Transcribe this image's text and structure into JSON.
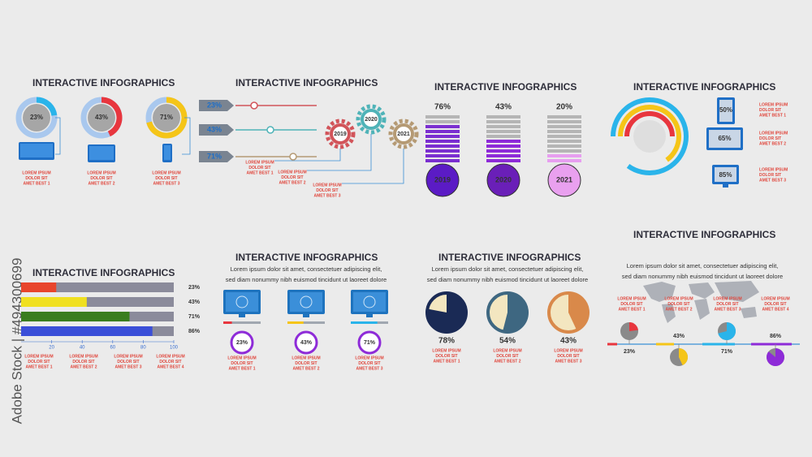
{
  "watermark": "Adobe Stock | #494300699",
  "panels": [
    {
      "title": "INTERACTIVE INFOGRAPHICS",
      "items": [
        {
          "value": 23,
          "label": "23%",
          "caption": [
            "LOREM IPSUM",
            "DOLOR SIT",
            "AMET BEST 1"
          ]
        },
        {
          "value": 43,
          "label": "43%",
          "caption": [
            "LOREM IPSUM",
            "DOLOR SIT",
            "AMET BEST 2"
          ]
        },
        {
          "value": 71,
          "label": "71%",
          "caption": [
            "LOREM IPSUM",
            "DOLOR SIT",
            "AMET BEST 3"
          ]
        }
      ]
    },
    {
      "title": "INTERACTIVE INFOGRAPHICS",
      "items": [
        {
          "value": 23,
          "label": "23%",
          "year": "2019",
          "caption": [
            "LOREM IPSUM",
            "DOLOR SIT",
            "AMET BEST 1"
          ]
        },
        {
          "value": 43,
          "label": "43%",
          "year": "2020",
          "caption": [
            "LOREM IPSUM",
            "DOLOR SIT",
            "AMET BEST 2"
          ]
        },
        {
          "value": 71,
          "label": "71%",
          "year": "2021",
          "caption": [
            "LOREM IPSUM",
            "DOLOR SIT",
            "AMET BEST 3"
          ]
        }
      ]
    },
    {
      "title": "INTERACTIVE INFOGRAPHICS",
      "items": [
        {
          "value": 76,
          "label": "76%",
          "year": "2019"
        },
        {
          "value": 43,
          "label": "43%",
          "year": "2020"
        },
        {
          "value": 20,
          "label": "20%",
          "year": "2021"
        }
      ]
    },
    {
      "title": "INTERACTIVE INFOGRAPHICS",
      "items": [
        {
          "value": 50,
          "label": "50%",
          "caption": [
            "LOREM IPSUM",
            "DOLOR SIT",
            "AMET BEST 1"
          ]
        },
        {
          "value": 65,
          "label": "65%",
          "caption": [
            "LOREM IPSUM",
            "DOLOR SIT",
            "AMET BEST 2"
          ]
        },
        {
          "value": 85,
          "label": "85%",
          "caption": [
            "LOREM IPSUM",
            "DOLOR SIT",
            "AMET BEST 3"
          ]
        }
      ]
    },
    {
      "title": "INTERACTIVE INFOGRAPHICS",
      "xlim": [
        0,
        100
      ],
      "xticks": [
        20,
        40,
        60,
        80,
        100
      ],
      "items": [
        {
          "value": 23,
          "label": "23%",
          "caption": [
            "LOREM IPSUM",
            "DOLOR SIT",
            "AMET BEST 1"
          ]
        },
        {
          "value": 43,
          "label": "43%",
          "caption": [
            "LOREM IPSUM",
            "DOLOR SIT",
            "AMET BEST 2"
          ]
        },
        {
          "value": 71,
          "label": "71%",
          "caption": [
            "LOREM IPSUM",
            "DOLOR SIT",
            "AMET BEST 3"
          ]
        },
        {
          "value": 86,
          "label": "86%",
          "caption": [
            "LOREM IPSUM",
            "DOLOR SIT",
            "AMET BEST 4"
          ]
        }
      ]
    },
    {
      "title": "INTERACTIVE INFOGRAPHICS",
      "subtitle": [
        "Lorem ipsum dolor sit amet, consectetuer adipiscing elit,",
        "sed diam nonummy nibh euismod tincidunt ut laoreet dolore"
      ],
      "items": [
        {
          "value": 23,
          "label": "23%",
          "caption": [
            "LOREM IPSUM",
            "DOLOR SIT",
            "AMET BEST 1"
          ]
        },
        {
          "value": 43,
          "label": "43%",
          "caption": [
            "LOREM IPSUM",
            "DOLOR SIT",
            "AMET BEST 2"
          ]
        },
        {
          "value": 71,
          "label": "71%",
          "caption": [
            "LOREM IPSUM",
            "DOLOR SIT",
            "AMET BEST 3"
          ]
        }
      ]
    },
    {
      "title": "INTERACTIVE INFOGRAPHICS",
      "subtitle": [
        "Lorem ipsum dolor sit amet, consectetuer adipiscing elit,",
        "sed diam nonummy nibh euismod tincidunt ut laoreet dolore"
      ],
      "items": [
        {
          "value": 78,
          "label": "78%",
          "caption": [
            "LOREM IPSUM",
            "DOLOR SIT",
            "AMET BEST 1"
          ]
        },
        {
          "value": 54,
          "label": "54%",
          "caption": [
            "LOREM IPSUM",
            "DOLOR SIT",
            "AMET BEST 2"
          ]
        },
        {
          "value": 43,
          "label": "43%",
          "caption": [
            "LOREM IPSUM",
            "DOLOR SIT",
            "AMET BEST 3"
          ]
        }
      ]
    },
    {
      "title": "INTERACTIVE INFOGRAPHICS",
      "subtitle": [
        "Lorem ipsum dolor sit amet, consectetuer adipiscing elit,",
        "sed diam nonummy nibh euismod tincidunt ut laoreet dolore"
      ],
      "items": [
        {
          "value": 23,
          "label": "23%",
          "caption": [
            "LOREM IPSUM",
            "DOLOR SIT",
            "AMET BEST 1"
          ]
        },
        {
          "value": 43,
          "label": "43%",
          "caption": [
            "LOREM IPSUM",
            "DOLOR SIT",
            "AMET BEST 2"
          ]
        },
        {
          "value": 71,
          "label": "71%",
          "caption": [
            "LOREM IPSUM",
            "DOLOR SIT",
            "AMET BEST 3"
          ]
        },
        {
          "value": 86,
          "label": "86%",
          "caption": [
            "LOREM IPSUM",
            "DOLOR SIT",
            "AMET BEST 4"
          ]
        }
      ]
    }
  ]
}
